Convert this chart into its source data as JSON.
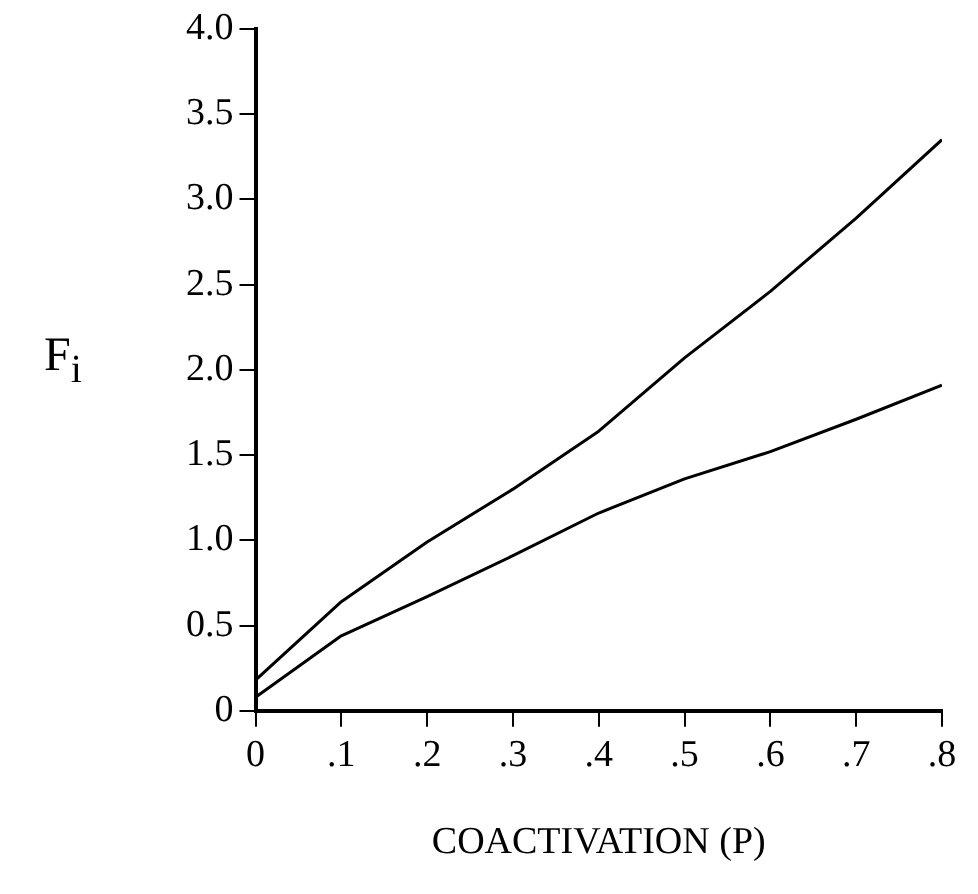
{
  "chart_data": {
    "type": "line",
    "xlabel": "COACTIVATION (P)",
    "ylabel": "F$_{i}$",
    "x": [
      0,
      0.1,
      0.2,
      0.3,
      0.4,
      0.5,
      0.6,
      0.7,
      0.8
    ],
    "series": [
      {
        "color": "#000000",
        "values": [
          0.18,
          0.64,
          0.99,
          1.3,
          1.64,
          2.07,
          2.46,
          2.89,
          3.35
        ]
      },
      {
        "color": "#000000",
        "values": [
          0.08,
          0.44,
          0.67,
          0.91,
          1.16,
          1.36,
          1.52,
          1.71,
          1.91
        ]
      }
    ],
    "xlim": [
      0,
      0.8
    ],
    "xticks": [
      0,
      {
        "value": 0.1,
        "label": ".1"
      },
      {
        "value": 0.2,
        "label": ".2"
      },
      {
        "value": 0.3,
        "label": ".3"
      },
      {
        "value": 0.4,
        "label": ".4"
      },
      {
        "value": 0.5,
        "label": ".5"
      },
      {
        "value": 0.6,
        "label": ".6"
      },
      {
        "value": 0.7,
        "label": ".7"
      },
      {
        "value": 0.8,
        "label": ".8"
      }
    ],
    "ylim": [
      0,
      4
    ],
    "yticks": [
      0,
      0.5,
      {
        "value": 1,
        "label": "1.0"
      },
      1.5,
      {
        "value": 2,
        "label": "2.0"
      },
      2.5,
      {
        "value": 3,
        "label": "3.0"
      },
      3.5,
      {
        "value": 4,
        "label": "4.0"
      }
    ],
    "grid": false,
    "legend": false,
    "marker": "none",
    "line_style": "solid"
  }
}
